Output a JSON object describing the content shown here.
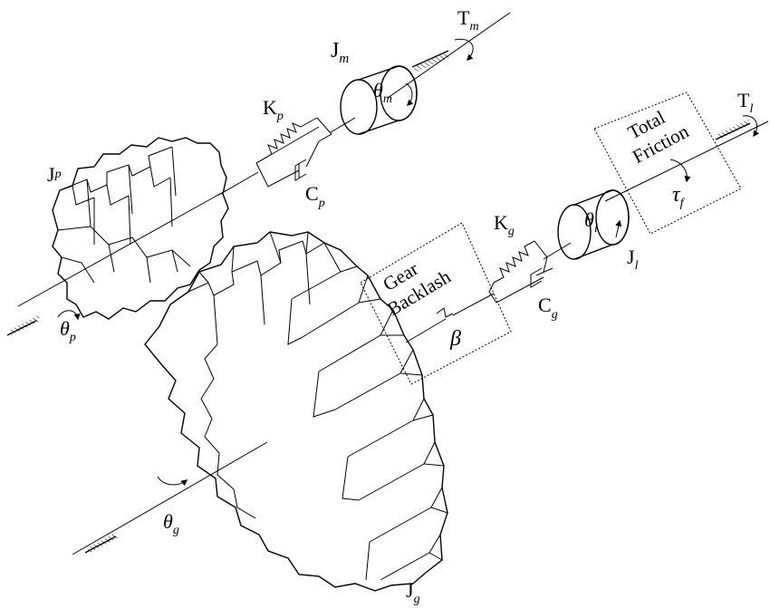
{
  "labels": {
    "Jm": {
      "main": "J",
      "sub": "m"
    },
    "theta_m": {
      "main": "θ",
      "sub": "m"
    },
    "Tm": {
      "main": "T",
      "sub": "m"
    },
    "Kp": {
      "main": "K",
      "sub": "p"
    },
    "Cp": {
      "main": "C",
      "sub": "p"
    },
    "Jp": {
      "main": "J",
      "sub": "p"
    },
    "theta_p": {
      "main": "θ",
      "sub": "p"
    },
    "Kg": {
      "main": "K",
      "sub": "g"
    },
    "Cg": {
      "main": "C",
      "sub": "g"
    },
    "theta_l": {
      "main": "θ",
      "sub": "l"
    },
    "Jl": {
      "main": "J",
      "sub": "l"
    },
    "Tl": {
      "main": "T",
      "sub": "l"
    },
    "tau_f": {
      "main": "τ",
      "sub": "f"
    },
    "beta": "β",
    "theta_g": {
      "main": "θ",
      "sub": "g"
    },
    "Jg": {
      "main": "J",
      "sub": "g"
    },
    "gear_backlash": [
      "Gear",
      "Backlash"
    ],
    "total_friction": [
      "Total",
      "Friction"
    ]
  }
}
